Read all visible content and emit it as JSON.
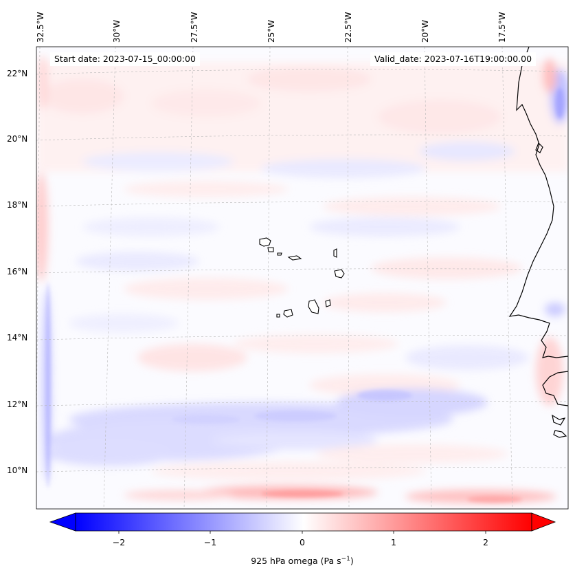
{
  "map": {
    "lon_labels": [
      "32.5°W",
      "30°W",
      "27.5°W",
      "25°W",
      "22.5°W",
      "20°W",
      "17.5°W"
    ],
    "lat_labels": [
      "22°N",
      "20°N",
      "18°N",
      "16°N",
      "14°N",
      "12°N",
      "10°N"
    ],
    "start_date": "Start date: 2023-07-15_00:00:00",
    "valid_date": "Valid_date: 2023-07-16T19:00:00.00",
    "projection_hint": "lat/lon gridlines dashed grey",
    "colors": {
      "negative": "#0000ff",
      "zero": "#ffffff",
      "positive": "#ff0000",
      "coast": "#000000",
      "grid": "#b0b0b0"
    }
  },
  "colorbar": {
    "ticks": [
      "−2",
      "−1",
      "0",
      "1",
      "2"
    ],
    "tick_values": [
      -2,
      -1,
      0,
      1,
      2
    ],
    "range": [
      -2.6,
      2.6
    ],
    "cmap": "bwr",
    "extend": "both",
    "label_main": "925 hPa omega (Pa s",
    "label_sup": "−1",
    "label_end": ")"
  }
}
